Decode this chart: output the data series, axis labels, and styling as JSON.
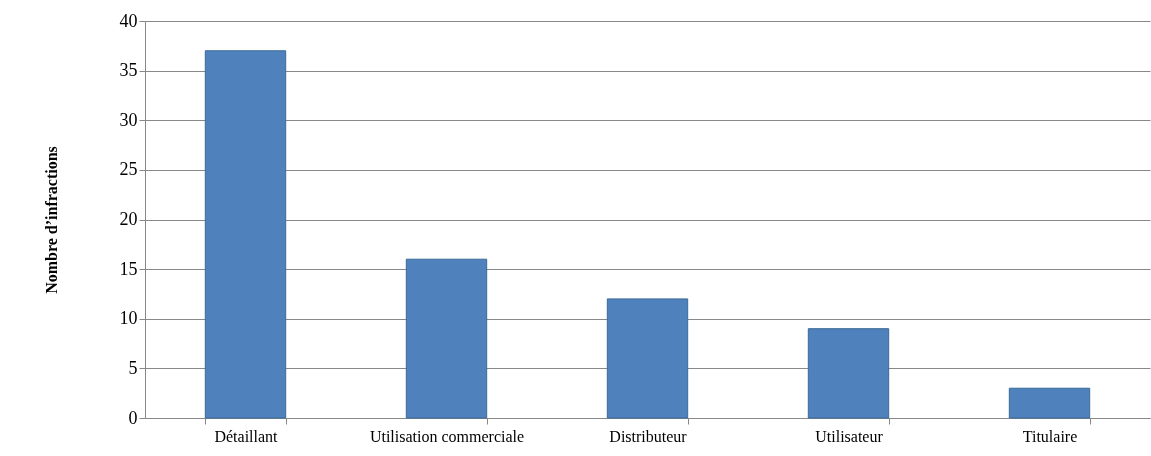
{
  "chart_data": {
    "type": "bar",
    "ylabel": "Nombre d’infractions",
    "categories": [
      "Détaillant",
      "Utilisation commerciale",
      "Distributeur",
      "Utilisateur",
      "Titulaire"
    ],
    "values": [
      37,
      16,
      12,
      9,
      3
    ],
    "color": "#4f81bd",
    "ylim": [
      0,
      40
    ],
    "yticks": [
      0,
      5,
      10,
      15,
      20,
      25,
      30,
      35,
      40
    ],
    "grid": "y"
  }
}
